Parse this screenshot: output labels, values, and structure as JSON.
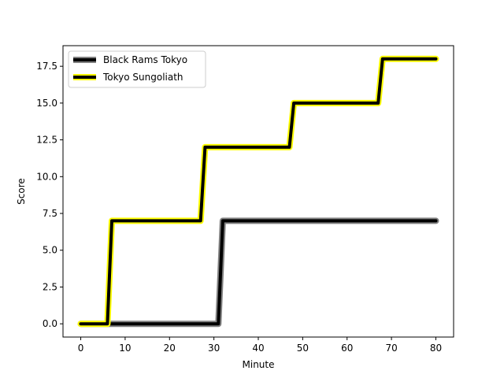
{
  "chart_data": {
    "type": "line",
    "xlabel": "Minute",
    "ylabel": "Score",
    "xlim": [
      -4,
      84
    ],
    "ylim": [
      -0.9,
      18.9
    ],
    "xticks": [
      0,
      10,
      20,
      30,
      40,
      50,
      60,
      70,
      80
    ],
    "xtick_labels": [
      "0",
      "10",
      "20",
      "30",
      "40",
      "50",
      "60",
      "70",
      "80"
    ],
    "yticks": [
      0,
      2.5,
      5,
      7.5,
      10,
      12.5,
      15,
      17.5
    ],
    "ytick_labels": [
      "0.0",
      "2.5",
      "5.0",
      "7.5",
      "10.0",
      "12.5",
      "15.0",
      "17.5"
    ],
    "grid": false,
    "legend_position": "top-left",
    "series": [
      {
        "name": "Black Rams Tokyo",
        "color": "#000000",
        "glow": "#808080",
        "x": [
          0,
          6,
          7,
          31,
          32,
          80
        ],
        "y": [
          0,
          0,
          0,
          0,
          7,
          7
        ]
      },
      {
        "name": "Tokyo Sungoliath",
        "color": "#000000",
        "glow": "#ffff00",
        "x": [
          0,
          6,
          7,
          27,
          28,
          47,
          48,
          67,
          68,
          80
        ],
        "y": [
          0,
          0,
          7,
          7,
          12,
          12,
          15,
          15,
          18,
          18
        ]
      }
    ]
  }
}
